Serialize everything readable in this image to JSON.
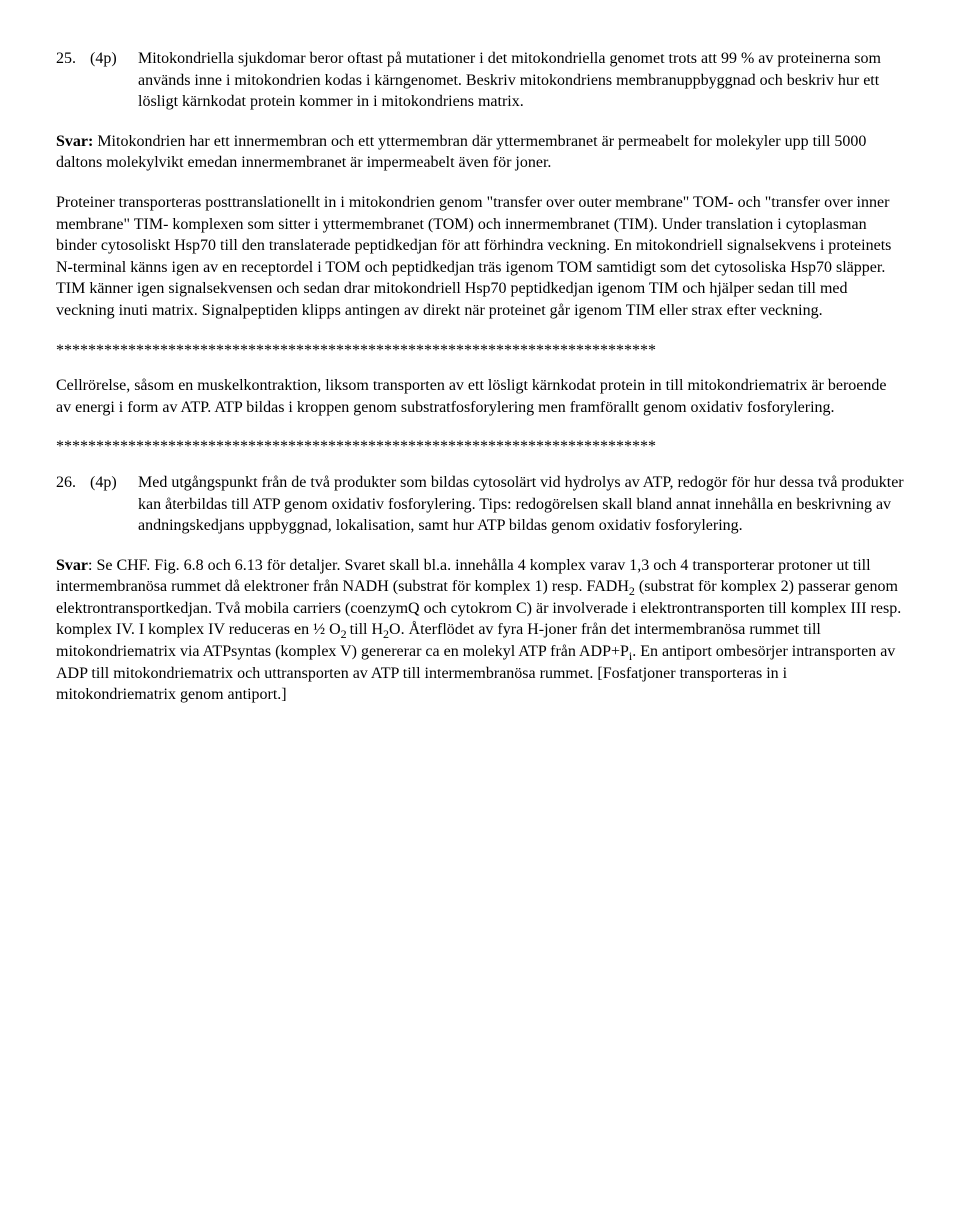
{
  "q25": {
    "num": "25.",
    "pts": "(4p)",
    "text": "Mitokondriella sjukdomar beror oftast på mutationer i det mitokondriella genomet trots att 99 % av proteinerna som används inne i mitokondrien kodas i kärngenomet. Beskriv mitokondriens membranuppbyggnad och beskriv hur ett lösligt kärnkodat protein kommer in i mitokondriens matrix.",
    "svar_label": "Svar:",
    "svar1": " Mitokondrien har ett innermembran och ett yttermembran där yttermembranet är permeabelt for molekyler upp till 5000 daltons molekylvikt emedan innermembranet är impermeabelt även för joner.",
    "svar2": "Proteiner transporteras posttranslationellt in i mitokondrien genom \"transfer over outer membrane\" TOM- och \"transfer over inner membrane\" TIM- komplexen som sitter i yttermembranet (TOM) och innermembranet (TIM). Under translation i cytoplasman binder cytosoliskt Hsp70 till den translaterade peptidkedjan för att förhindra veckning. En mitokondriell signalsekvens i proteinets N-terminal känns igen av en receptordel i TOM och peptidkedjan träs igenom TOM samtidigt som det cytosoliska Hsp70 släpper. TIM känner igen signalsekvensen och sedan drar mitokondriell Hsp70 peptidkedjan igenom TIM och hjälper sedan till med veckning inuti matrix. Signalpeptiden klipps antingen av direkt när proteinet går igenom TIM eller strax efter veckning."
  },
  "bridge": {
    "sep": "***************************************************************************",
    "text": "Cellrörelse, såsom en muskelkontraktion, liksom transporten av ett lösligt kärnkodat protein in till mitokondriematrix är beroende av energi i form av ATP. ATP bildas i kroppen genom substratfosforylering men framförallt genom oxidativ fosforylering.",
    "sep2": "***************************************************************************"
  },
  "q26": {
    "num": "26.",
    "pts": "(4p)",
    "text": "Med utgångspunkt från de två produkter som bildas cytosolärt vid hydrolys av ATP, redogör för hur dessa två produkter kan återbildas till ATP genom oxidativ fosforylering. Tips: redogörelsen skall bland annat innehålla en beskrivning av andningskedjans uppbyggnad, lokalisation, samt hur ATP bildas genom oxidativ fosforylering.",
    "svar_label": "Svar",
    "svar_pre": ": Se CHF. Fig. 6.8 och 6.13 för detaljer. Svaret skall bl.a. innehålla 4 komplex varav 1,3 och 4 transporterar protoner ut till intermembranösa rummet då elektroner från NADH (substrat för komplex 1) resp. FADH",
    "svar_sub1": "2",
    "svar_mid1": " (substrat för komplex 2) passerar genom elektrontransportkedjan. Två mobila carriers (coenzymQ och cytokrom C) är involverade i elektrontransporten till komplex III resp. komplex IV. I komplex IV reduceras en ½ O",
    "svar_sub2": "2 ",
    "svar_mid2": "till H",
    "svar_sub3": "2",
    "svar_mid3": "O. Återflödet av fyra H-joner från det intermembranösa rummet till mitokondriematrix via ATPsyntas (komplex V) genererar ca en molekyl ATP från ADP+P",
    "svar_sub4": "i",
    "svar_end": ". En antiport ombesörjer intransporten av ADP till mitokondriematrix och uttransporten av ATP till intermembranösa rummet. [Fosfatjoner transporteras in i mitokondriematrix genom antiport.]"
  }
}
